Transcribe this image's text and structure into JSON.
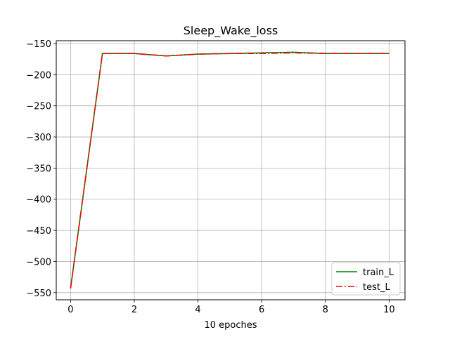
{
  "chart_data": {
    "type": "line",
    "title": "Sleep_Wake_loss",
    "xlabel": "10 epoches",
    "ylabel": "",
    "xlim": [
      -0.45,
      10.5
    ],
    "ylim": [
      -561.5,
      -145.5
    ],
    "xticks": [
      0,
      2,
      4,
      6,
      8,
      10
    ],
    "yticks": [
      -550,
      -500,
      -450,
      -400,
      -350,
      -300,
      -250,
      -200,
      -150
    ],
    "x": [
      0,
      1,
      2,
      3,
      4,
      5,
      6,
      7,
      8,
      9,
      10
    ],
    "grid": true,
    "legend_position": "lower-right",
    "series": [
      {
        "name": "train_L",
        "values": [
          -543,
          -166,
          -166,
          -170,
          -167,
          -166,
          -165,
          -164,
          -166,
          -166,
          -166
        ],
        "color": "#007f00",
        "dash": "solid"
      },
      {
        "name": "test_L",
        "values": [
          -543,
          -166,
          -166,
          -170,
          -167,
          -166,
          -166,
          -165,
          -166,
          -166,
          -166
        ],
        "color": "#ff0000",
        "dash": "dashdot"
      }
    ]
  }
}
